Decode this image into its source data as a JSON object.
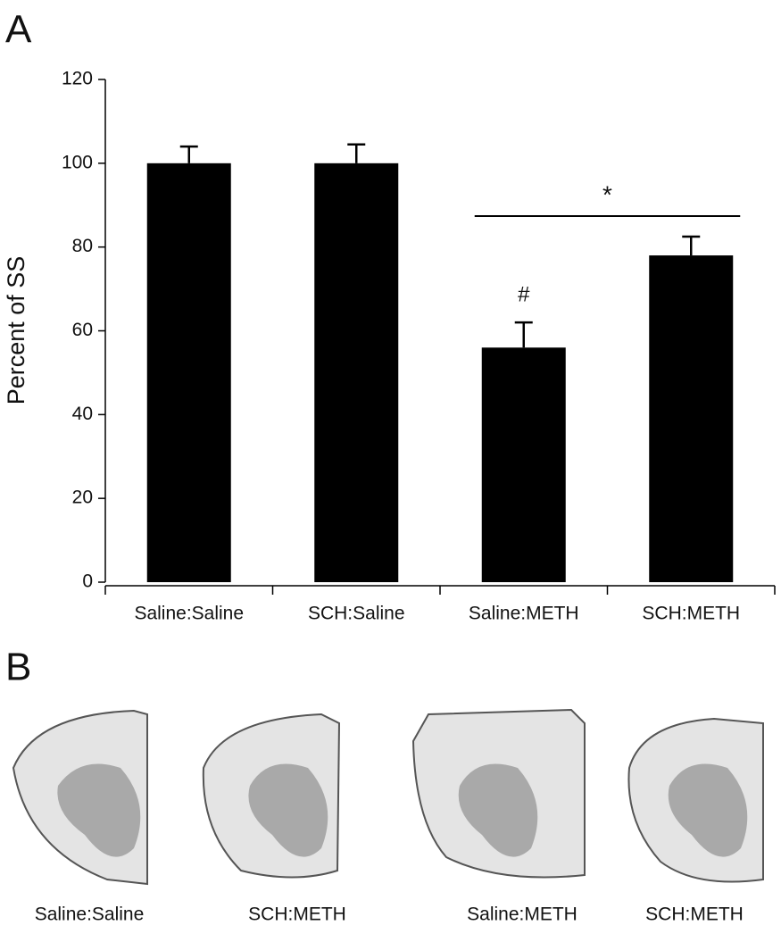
{
  "panel_a_label": "A",
  "chart_data": {
    "type": "bar",
    "y_label": "Percent of SS",
    "categories": [
      "Saline:Saline",
      "SCH:Saline",
      "Saline:METH",
      "SCH:METH"
    ],
    "values": [
      100,
      100,
      56,
      78
    ],
    "errors": [
      4,
      4.5,
      6,
      4.5
    ],
    "color": "#000000",
    "ylim": [
      0,
      120
    ],
    "yticks": [
      0,
      20,
      40,
      60,
      80,
      100,
      120
    ],
    "annotations": [
      {
        "text": "#",
        "category": 2
      }
    ],
    "brackets": [
      {
        "text": "*",
        "from": 2,
        "to": 3
      }
    ]
  },
  "panel_b_label": "B",
  "images": [
    {
      "label": "Saline:Saline"
    },
    {
      "label": "SCH:METH"
    },
    {
      "label": "Saline:METH"
    },
    {
      "label": "SCH:METH"
    }
  ]
}
